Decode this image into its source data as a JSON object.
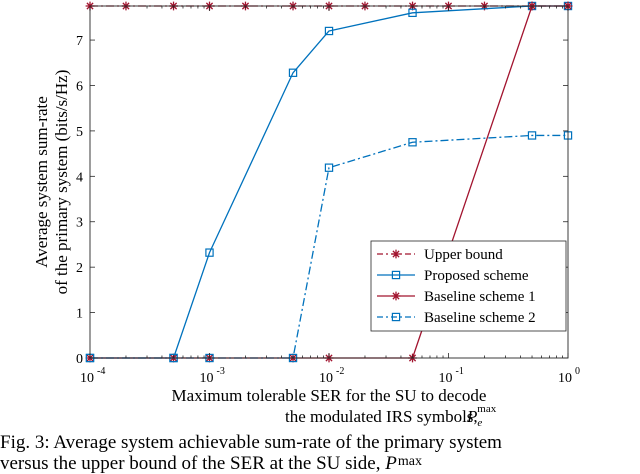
{
  "chart_data": {
    "type": "line",
    "xscale": "log",
    "xlim": [
      0.0001,
      1
    ],
    "ylim": [
      0,
      7.75
    ],
    "xticks": [
      0.0001,
      0.001,
      0.01,
      0.1,
      1
    ],
    "xtick_labels": [
      {
        "base": "10",
        "exp": "-4"
      },
      {
        "base": "10",
        "exp": "-3"
      },
      {
        "base": "10",
        "exp": "-2"
      },
      {
        "base": "10",
        "exp": "-1"
      },
      {
        "base": "10",
        "exp": "0"
      }
    ],
    "yticks": [
      0,
      1,
      2,
      3,
      4,
      5,
      6,
      7
    ],
    "ytick_labels": [
      "0",
      "1",
      "2",
      "3",
      "4",
      "5",
      "6",
      "7"
    ],
    "ylabel_lines": [
      "Average system sum-rate",
      "of the primary system (bits/s/Hz)"
    ],
    "xlabel_lines": [
      "Maximum tolerable SER for the SU to decode",
      "the modulated IRS symbols, "
    ],
    "xlabel_symbol": {
      "base": "P",
      "sub": "e",
      "sup": "max"
    },
    "grid": false,
    "legend_position": "bottom-right",
    "series": [
      {
        "name": "Upper bound",
        "color": "#A2142F",
        "dash": "dashdot",
        "marker": "star",
        "x": [
          0.0001,
          0.0002,
          0.0005,
          0.001,
          0.002,
          0.005,
          0.01,
          0.02,
          0.05,
          0.1,
          0.2,
          0.5,
          1
        ],
        "y": [
          7.75,
          7.75,
          7.75,
          7.75,
          7.75,
          7.75,
          7.75,
          7.75,
          7.75,
          7.75,
          7.75,
          7.75,
          7.75
        ]
      },
      {
        "name": "Proposed scheme",
        "color": "#0072BD",
        "dash": "solid",
        "marker": "square",
        "x": [
          0.0001,
          0.0005,
          0.001,
          0.005,
          0.01,
          0.05,
          0.5,
          1
        ],
        "y": [
          0,
          0,
          2.32,
          6.28,
          7.2,
          7.6,
          7.75,
          7.75
        ]
      },
      {
        "name": "Baseline scheme 1",
        "color": "#A2142F",
        "dash": "solid",
        "marker": "star",
        "x": [
          0.0001,
          0.0005,
          0.001,
          0.005,
          0.01,
          0.05,
          0.5,
          1
        ],
        "y": [
          0,
          0,
          0,
          0,
          0,
          0,
          7.75,
          7.75
        ]
      },
      {
        "name": "Baseline scheme 2",
        "color": "#0072BD",
        "dash": "dashdot",
        "marker": "square",
        "x": [
          0.0001,
          0.0005,
          0.001,
          0.005,
          0.01,
          0.05,
          0.5,
          1
        ],
        "y": [
          0,
          0,
          0,
          0,
          4.19,
          4.75,
          4.9,
          4.9
        ]
      }
    ]
  },
  "caption": {
    "line1": "Fig. 3: Average system achievable sum-rate of the primary system",
    "line2_text": "versus the upper bound of the SER at the SU side, ",
    "line2_symbol": {
      "base": "P",
      "sub": "e",
      "sup": "max"
    }
  }
}
